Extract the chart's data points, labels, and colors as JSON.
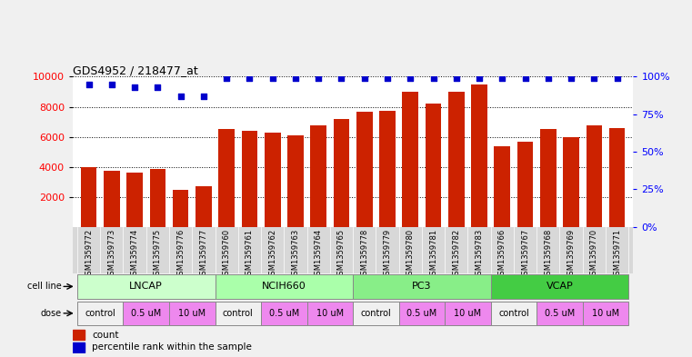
{
  "title": "GDS4952 / 218477_at",
  "samples": [
    "GSM1359772",
    "GSM1359773",
    "GSM1359774",
    "GSM1359775",
    "GSM1359776",
    "GSM1359777",
    "GSM1359760",
    "GSM1359761",
    "GSM1359762",
    "GSM1359763",
    "GSM1359764",
    "GSM1359765",
    "GSM1359778",
    "GSM1359779",
    "GSM1359780",
    "GSM1359781",
    "GSM1359782",
    "GSM1359783",
    "GSM1359766",
    "GSM1359767",
    "GSM1359768",
    "GSM1359769",
    "GSM1359770",
    "GSM1359771"
  ],
  "counts": [
    4000,
    3750,
    3600,
    3850,
    2450,
    2700,
    6500,
    6400,
    6300,
    6100,
    6750,
    7200,
    7650,
    7750,
    9000,
    8200,
    9000,
    9500,
    5350,
    5650,
    6500,
    6000,
    6750,
    6600
  ],
  "percentile_ranks_pct": [
    95,
    95,
    93,
    93,
    87,
    87,
    99,
    99,
    99,
    99,
    99,
    99,
    99,
    99,
    99,
    99,
    99,
    99,
    99,
    99,
    99,
    99,
    99,
    99
  ],
  "bar_color": "#cc2200",
  "dot_color": "#0000cc",
  "ylim": [
    0,
    10000
  ],
  "yticks": [
    2000,
    4000,
    6000,
    8000,
    10000
  ],
  "y2lim": [
    0,
    100
  ],
  "y2ticks": [
    0,
    25,
    50,
    75,
    100
  ],
  "cell_line_groups": [
    {
      "name": "LNCAP",
      "start": 0,
      "end": 6,
      "color": "#ccffcc"
    },
    {
      "name": "NCIH660",
      "start": 6,
      "end": 12,
      "color": "#aaffaa"
    },
    {
      "name": "PC3",
      "start": 12,
      "end": 18,
      "color": "#88ee88"
    },
    {
      "name": "VCAP",
      "start": 18,
      "end": 24,
      "color": "#44cc44"
    }
  ],
  "dose_groups": [
    {
      "name": "control",
      "start": 0,
      "end": 2,
      "color": "#f0f0f0"
    },
    {
      "name": "0.5 uM",
      "start": 2,
      "end": 4,
      "color": "#ee88ee"
    },
    {
      "name": "10 uM",
      "start": 4,
      "end": 6,
      "color": "#ee88ee"
    },
    {
      "name": "control",
      "start": 6,
      "end": 8,
      "color": "#f0f0f0"
    },
    {
      "name": "0.5 uM",
      "start": 8,
      "end": 10,
      "color": "#ee88ee"
    },
    {
      "name": "10 uM",
      "start": 10,
      "end": 12,
      "color": "#ee88ee"
    },
    {
      "name": "control",
      "start": 12,
      "end": 14,
      "color": "#f0f0f0"
    },
    {
      "name": "0.5 uM",
      "start": 14,
      "end": 16,
      "color": "#ee88ee"
    },
    {
      "name": "10 uM",
      "start": 16,
      "end": 18,
      "color": "#ee88ee"
    },
    {
      "name": "control",
      "start": 18,
      "end": 20,
      "color": "#f0f0f0"
    },
    {
      "name": "0.5 uM",
      "start": 20,
      "end": 22,
      "color": "#ee88ee"
    },
    {
      "name": "10 uM",
      "start": 22,
      "end": 24,
      "color": "#ee88ee"
    }
  ],
  "sample_label_bg": "#d8d8d8",
  "fig_bg": "#f0f0f0",
  "plot_bg": "#ffffff"
}
